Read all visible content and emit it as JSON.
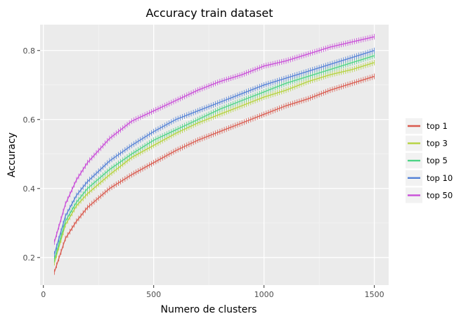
{
  "chart_data": {
    "type": "line",
    "title": "Accuracy train dataset",
    "xlabel": "Numero de clusters",
    "ylabel": "Accuracy",
    "xlim": [
      -15,
      1565
    ],
    "ylim": [
      0.12,
      0.875
    ],
    "xticks": [
      0,
      500,
      1000,
      1500
    ],
    "xtick_labels": [
      "0",
      "500",
      "1000",
      "1500"
    ],
    "yticks": [
      0.2,
      0.4,
      0.6,
      0.8
    ],
    "ytick_labels": [
      "0.2",
      "0.4",
      "0.6",
      "0.8"
    ],
    "grid": true,
    "legend_position": "right",
    "x": [
      50,
      100,
      150,
      200,
      300,
      400,
      500,
      600,
      700,
      800,
      900,
      1000,
      1100,
      1200,
      1300,
      1400,
      1500
    ],
    "series": [
      {
        "name": "top 1",
        "color": "#d95a4e",
        "values": [
          0.158,
          0.255,
          0.305,
          0.345,
          0.4,
          0.44,
          0.475,
          0.51,
          0.54,
          0.565,
          0.59,
          0.615,
          0.64,
          0.66,
          0.685,
          0.705,
          0.725
        ]
      },
      {
        "name": "top 3",
        "color": "#b5d33f",
        "values": [
          0.185,
          0.295,
          0.35,
          0.385,
          0.44,
          0.49,
          0.525,
          0.56,
          0.59,
          0.615,
          0.64,
          0.665,
          0.685,
          0.71,
          0.73,
          0.745,
          0.765
        ]
      },
      {
        "name": "top 5",
        "color": "#4fd486",
        "values": [
          0.195,
          0.305,
          0.36,
          0.4,
          0.455,
          0.5,
          0.54,
          0.57,
          0.6,
          0.63,
          0.655,
          0.68,
          0.705,
          0.725,
          0.745,
          0.765,
          0.785
        ]
      },
      {
        "name": "top 10",
        "color": "#5381d6",
        "values": [
          0.21,
          0.32,
          0.38,
          0.42,
          0.48,
          0.525,
          0.565,
          0.6,
          0.625,
          0.65,
          0.675,
          0.7,
          0.72,
          0.74,
          0.76,
          0.78,
          0.8
        ]
      },
      {
        "name": "top 50",
        "color": "#c94ed8",
        "values": [
          0.245,
          0.355,
          0.425,
          0.475,
          0.545,
          0.595,
          0.625,
          0.655,
          0.685,
          0.71,
          0.73,
          0.755,
          0.77,
          0.79,
          0.81,
          0.825,
          0.84
        ]
      }
    ]
  }
}
